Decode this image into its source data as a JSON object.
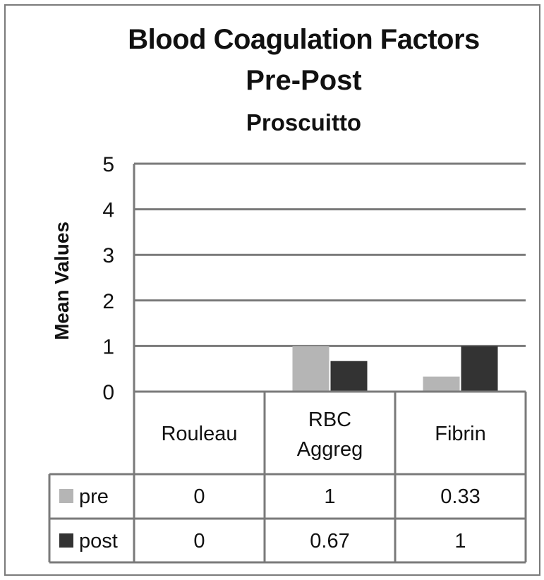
{
  "chart_data": {
    "type": "bar",
    "title": "Blood Coagulation Factors",
    "title_line2": "Pre-Post",
    "subtitle": "Proscuitto",
    "xlabel": "",
    "ylabel": "Mean Values",
    "ylim": [
      0,
      5
    ],
    "yticks": [
      "0",
      "1",
      "2",
      "3",
      "4",
      "5"
    ],
    "grid": true,
    "legend": "data-table",
    "categories": [
      "Rouleau",
      "RBC Aggreg",
      "Fibrin"
    ],
    "series": [
      {
        "name": "pre",
        "values": [
          0,
          1,
          0.33
        ],
        "labels": [
          "0",
          "1",
          "0.33"
        ],
        "color": "#b5b5b5"
      },
      {
        "name": "post",
        "values": [
          0,
          0.67,
          1
        ],
        "labels": [
          "0",
          "0.67",
          "1"
        ],
        "color": "#333333"
      }
    ]
  }
}
